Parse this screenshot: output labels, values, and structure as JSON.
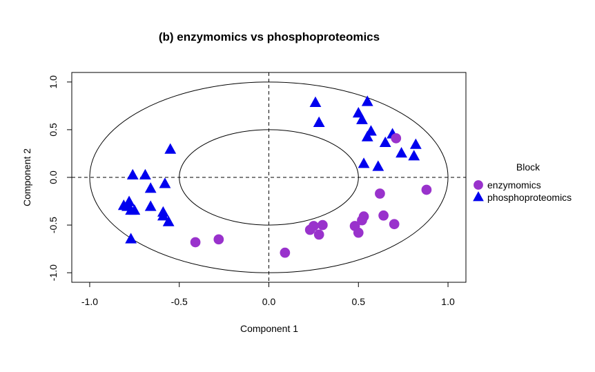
{
  "chart_data": {
    "type": "scatter",
    "title": "(b) enzymomics vs phosphoproteomics",
    "xlabel": "Component  1",
    "ylabel": "Component  2",
    "xlim": [
      -1.1,
      1.1
    ],
    "ylim": [
      -1.1,
      1.1
    ],
    "xticks": [
      -1.0,
      -0.5,
      0.0,
      0.5,
      1.0
    ],
    "yticks": [
      -1.0,
      -0.5,
      0.0,
      0.5,
      1.0
    ],
    "xtick_labels": [
      "-1.0",
      "-0.5",
      "0.0",
      "0.5",
      "1.0"
    ],
    "ytick_labels": [
      "-1.0",
      "-0.5",
      "0.0",
      "0.5",
      "1.0"
    ],
    "grid": false,
    "reference_lines": {
      "x": 0,
      "y": 0,
      "style": "dashed"
    },
    "circles": [
      1.0,
      0.5
    ],
    "legend": {
      "title": "Block",
      "placement": "right"
    },
    "series": [
      {
        "name": "enzymomics",
        "marker": "circle",
        "color": "#9932CC",
        "points": [
          [
            0.71,
            0.41
          ],
          [
            0.88,
            -0.13
          ],
          [
            0.62,
            -0.17
          ],
          [
            0.53,
            -0.41
          ],
          [
            0.52,
            -0.45
          ],
          [
            0.64,
            -0.4
          ],
          [
            0.7,
            -0.49
          ],
          [
            0.48,
            -0.51
          ],
          [
            0.5,
            -0.58
          ],
          [
            0.3,
            -0.5
          ],
          [
            0.25,
            -0.51
          ],
          [
            0.23,
            -0.55
          ],
          [
            0.28,
            -0.6
          ],
          [
            0.09,
            -0.79
          ],
          [
            -0.28,
            -0.65
          ],
          [
            -0.41,
            -0.68
          ]
        ]
      },
      {
        "name": "phosphoproteomics",
        "marker": "triangle",
        "color": "#0000EE",
        "points": [
          [
            0.26,
            0.78
          ],
          [
            0.28,
            0.57
          ],
          [
            0.55,
            0.79
          ],
          [
            0.5,
            0.67
          ],
          [
            0.52,
            0.6
          ],
          [
            0.57,
            0.48
          ],
          [
            0.55,
            0.42
          ],
          [
            0.69,
            0.45
          ],
          [
            0.65,
            0.36
          ],
          [
            0.74,
            0.25
          ],
          [
            0.82,
            0.34
          ],
          [
            0.81,
            0.22
          ],
          [
            0.53,
            0.14
          ],
          [
            0.61,
            0.11
          ],
          [
            -0.55,
            0.29
          ],
          [
            -0.76,
            0.02
          ],
          [
            -0.69,
            0.02
          ],
          [
            -0.58,
            -0.07
          ],
          [
            -0.66,
            -0.12
          ],
          [
            -0.78,
            -0.26
          ],
          [
            -0.79,
            -0.31
          ],
          [
            -0.77,
            -0.35
          ],
          [
            -0.81,
            -0.3
          ],
          [
            -0.75,
            -0.35
          ],
          [
            -0.66,
            -0.31
          ],
          [
            -0.59,
            -0.37
          ],
          [
            -0.59,
            -0.41
          ],
          [
            -0.56,
            -0.47
          ],
          [
            -0.77,
            -0.65
          ]
        ]
      }
    ]
  }
}
